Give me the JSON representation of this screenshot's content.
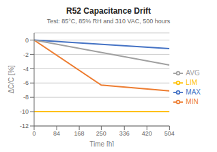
{
  "chart_data": {
    "type": "line",
    "title": "R52 Capacitance Drift",
    "subtitle": "Test: 85°C, 85% RH and 310 VAC, 500 hours",
    "xlabel": "Time [h]",
    "ylabel": "ΔC/C [%]",
    "xlim": [
      0,
      504
    ],
    "ylim": [
      -12,
      1
    ],
    "xticks": [
      0,
      84,
      168,
      250,
      336,
      420,
      504
    ],
    "yticks": [
      0,
      -2,
      -4,
      -6,
      -8,
      -10,
      -12
    ],
    "grid": true,
    "legend": "right",
    "series": [
      {
        "name": "MAX",
        "color": "#4472C4",
        "x": [
          0,
          504
        ],
        "values": [
          0,
          -1.2
        ]
      },
      {
        "name": "MIN",
        "color": "#ED7D31",
        "x": [
          0,
          250,
          504
        ],
        "values": [
          0,
          -6.3,
          -7.1
        ]
      },
      {
        "name": "AVG",
        "color": "#A0A0A0",
        "x": [
          0,
          504
        ],
        "values": [
          0,
          -3.5
        ]
      },
      {
        "name": "LIM",
        "color": "#FFC000",
        "x": [
          0,
          504
        ],
        "values": [
          -10,
          -10
        ]
      }
    ]
  }
}
